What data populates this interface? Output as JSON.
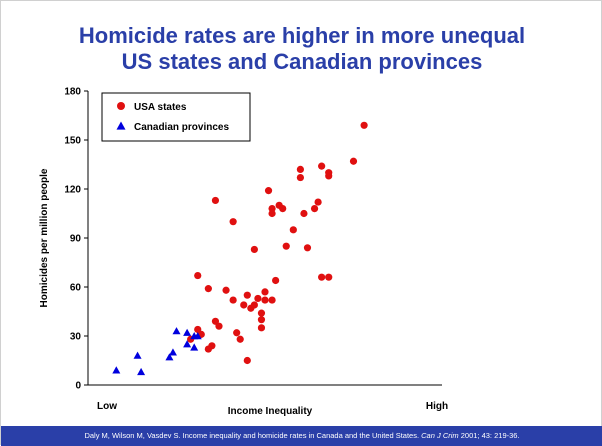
{
  "slide": {
    "citation_pre": "Daly M, Wilson M, Vasdev S. Income inequality and homicide rates in Canada and the United States. ",
    "citation_journal": "Can J Crim",
    "citation_post": " 2001; 43: 219-36."
  },
  "colors": {
    "title": "#2a3fa8",
    "usa": "#e01010",
    "canada": "#0000dd",
    "footer": "#2a3fa8"
  },
  "chart_data": {
    "type": "scatter",
    "title": "Homicide rates are higher in more unequal US states and Canadian provinces",
    "xlabel": "Income Inequality",
    "ylabel": "Homicides per million people",
    "x_tick_labels": [
      "Low",
      "High"
    ],
    "xlim": [
      0,
      100
    ],
    "ylim": [
      0,
      180
    ],
    "y_ticks": [
      0,
      30,
      60,
      90,
      120,
      150,
      180
    ],
    "legend_position": "top-left",
    "series": [
      {
        "name": "USA states",
        "marker": "circle",
        "points": [
          [
            29,
            28
          ],
          [
            31,
            67
          ],
          [
            31,
            34
          ],
          [
            32,
            31
          ],
          [
            34,
            59
          ],
          [
            34,
            22
          ],
          [
            35,
            24
          ],
          [
            36,
            113
          ],
          [
            36,
            39
          ],
          [
            37,
            36
          ],
          [
            39,
            58
          ],
          [
            41,
            52
          ],
          [
            41,
            100
          ],
          [
            42,
            32
          ],
          [
            43,
            28
          ],
          [
            44,
            49
          ],
          [
            45,
            15
          ],
          [
            45,
            55
          ],
          [
            46,
            47
          ],
          [
            47,
            49
          ],
          [
            47,
            83
          ],
          [
            48,
            53
          ],
          [
            49,
            35
          ],
          [
            49,
            40
          ],
          [
            49,
            44
          ],
          [
            50,
            57
          ],
          [
            50,
            52
          ],
          [
            51,
            119
          ],
          [
            52,
            52
          ],
          [
            52,
            105
          ],
          [
            52,
            108
          ],
          [
            53,
            64
          ],
          [
            54,
            110
          ],
          [
            55,
            108
          ],
          [
            56,
            85
          ],
          [
            58,
            95
          ],
          [
            60,
            127
          ],
          [
            60,
            132
          ],
          [
            61,
            105
          ],
          [
            62,
            84
          ],
          [
            64,
            108
          ],
          [
            65,
            112
          ],
          [
            66,
            66
          ],
          [
            66,
            134
          ],
          [
            68,
            128
          ],
          [
            68,
            130
          ],
          [
            68,
            66
          ],
          [
            75,
            137
          ],
          [
            78,
            159
          ]
        ]
      },
      {
        "name": "Canadian provinces",
        "marker": "triangle",
        "points": [
          [
            8,
            9
          ],
          [
            14,
            18
          ],
          [
            15,
            8
          ],
          [
            23,
            17
          ],
          [
            24,
            20
          ],
          [
            25,
            33
          ],
          [
            28,
            25
          ],
          [
            28,
            32
          ],
          [
            30,
            30
          ],
          [
            30,
            23
          ],
          [
            31,
            30
          ]
        ]
      }
    ]
  }
}
